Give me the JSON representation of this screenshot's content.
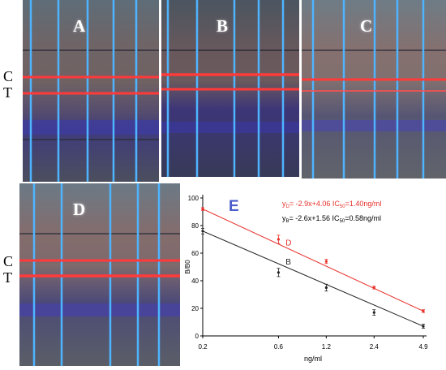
{
  "panels": [
    {
      "id": "A",
      "label": "A"
    },
    {
      "id": "B",
      "label": "B"
    },
    {
      "id": "C",
      "label": "C"
    },
    {
      "id": "D",
      "label": "D"
    }
  ],
  "side_labels": {
    "top": {
      "c": "C",
      "t": "T"
    },
    "bottom": {
      "c": "C",
      "t": "T"
    }
  },
  "colors": {
    "strip_blue": "#4fb4ff",
    "line_red": "#ff3a3a",
    "series_D": "#e8302a",
    "series_B": "#222222",
    "panel_E_label": "#4a5dc8"
  },
  "chart_data": {
    "type": "scatter",
    "panel_label": "E",
    "xlabel": "ng/ml",
    "ylabel": "B/B0",
    "x_scale": "log",
    "x_ticks": [
      "0.2",
      "0.6",
      "1.2",
      "2.4",
      "4.9"
    ],
    "y_ticks": [
      "0",
      "20",
      "40",
      "60",
      "80",
      "100"
    ],
    "ylim": [
      0,
      100
    ],
    "grid": false,
    "series": [
      {
        "name": "D",
        "x": [
          0.2,
          0.6,
          1.2,
          2.4,
          4.9
        ],
        "y": [
          92,
          70,
          54,
          35,
          18
        ],
        "err": [
          1,
          3,
          1.5,
          1,
          1
        ],
        "color": "#e8302a"
      },
      {
        "name": "B",
        "x": [
          0.2,
          0.6,
          1.2,
          2.4,
          4.9
        ],
        "y": [
          76,
          46,
          35,
          17,
          7
        ],
        "err": [
          2,
          3,
          2.5,
          2,
          1.5
        ],
        "color": "#222222"
      }
    ],
    "annotations": {
      "eq_D": {
        "prefix": "y",
        "sub": "D",
        "text": "= -2.9x+4.06  IC",
        "ic_sub": "50",
        "ic_val": "=1.40ng/ml"
      },
      "eq_B": {
        "prefix": "y",
        "sub": "B",
        "text": "= -2.6x+1.56  IC",
        "ic_sub": "50",
        "ic_val": "=0.58ng/ml"
      }
    }
  }
}
